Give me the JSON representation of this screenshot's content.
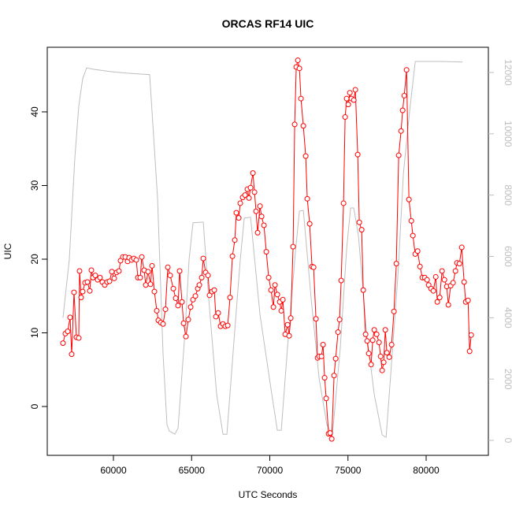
{
  "chart_data": {
    "type": "line",
    "title": "ORCAS RF14 UIC",
    "x_label": "UTC Seconds",
    "y_label": "UIC",
    "xlim": [
      55768,
      83980
    ],
    "ylim": [
      -6.63,
      48.77
    ],
    "y2lim": [
      -488,
      12822
    ],
    "xticks": [
      60000,
      65000,
      70000,
      75000,
      80000
    ],
    "yticks": [
      0,
      10,
      20,
      30,
      40
    ],
    "y2ticks": [
      0,
      2000,
      4000,
      6000,
      8000,
      10000,
      12000
    ],
    "series": [
      {
        "color": "#ff0000",
        "markers": true,
        "x": [
          56774,
          56926,
          57077,
          57228,
          57329,
          57480,
          57631,
          57782,
          57833,
          57934,
          58034,
          58186,
          58337,
          58488,
          58589,
          58690,
          58841,
          58992,
          59143,
          59294,
          59446,
          59597,
          59748,
          59899,
          60050,
          60202,
          60353,
          60454,
          60605,
          60756,
          60907,
          61008,
          61159,
          61310,
          61462,
          61562,
          61714,
          61814,
          61966,
          62066,
          62218,
          62369,
          62470,
          62621,
          62772,
          62873,
          63024,
          63175,
          63326,
          63478,
          63629,
          63830,
          63982,
          64133,
          64234,
          64385,
          64486,
          64637,
          64788,
          64939,
          65090,
          65242,
          65393,
          65494,
          65645,
          65746,
          65897,
          66048,
          66149,
          66300,
          66451,
          66552,
          66703,
          66854,
          67006,
          67157,
          67308,
          67459,
          67610,
          67762,
          67862,
          68014,
          68114,
          68266,
          68417,
          68568,
          68669,
          68770,
          68921,
          69022,
          69122,
          69223,
          69374,
          69475,
          69626,
          69778,
          69929,
          70080,
          70231,
          70332,
          70483,
          70634,
          70735,
          70836,
          70987,
          71138,
          71239,
          71340,
          71491,
          71592,
          71693,
          71794,
          71894,
          71995,
          72146,
          72298,
          72398,
          72550,
          72701,
          72802,
          72953,
          73054,
          73154,
          73306,
          73406,
          73507,
          73608,
          73759,
          73860,
          73961,
          74112,
          74213,
          74364,
          74465,
          74566,
          74717,
          74818,
          74918,
          75019,
          75120,
          75221,
          75372,
          75473,
          75624,
          75725,
          75876,
          75977,
          76128,
          76229,
          76330,
          76481,
          76582,
          76682,
          76834,
          76985,
          77086,
          77186,
          77287,
          77388,
          77489,
          77640,
          77791,
          77942,
          78094,
          78245,
          78396,
          78497,
          78598,
          78749,
          78900,
          79051,
          79152,
          79303,
          79454,
          79606,
          79757,
          79908,
          80059,
          80160,
          80311,
          80462,
          80614,
          80714,
          80866,
          81017,
          81168,
          81319,
          81420,
          81571,
          81722,
          81874,
          81974,
          82126,
          82277,
          82428,
          82529,
          82680,
          82781,
          82882
        ],
        "values": [
          8.6,
          9.9,
          10.2,
          12.1,
          7.1,
          15.5,
          9.4,
          9.3,
          18.4,
          14.8,
          15.6,
          16.8,
          16.9,
          15.7,
          18.5,
          17.5,
          17.8,
          17.2,
          17.5,
          16.9,
          16.5,
          16.9,
          17,
          18.3,
          17.4,
          18.2,
          18.4,
          19.8,
          20.3,
          20.3,
          19.7,
          20.2,
          19.9,
          20.1,
          19.9,
          17.5,
          17.5,
          20.3,
          18.5,
          16.5,
          18.3,
          16.6,
          19.1,
          15.6,
          13,
          11.7,
          11.4,
          11.2,
          13.2,
          18.9,
          17.8,
          16,
          14.7,
          13.7,
          18.4,
          14.2,
          11.3,
          9.5,
          11.8,
          13.5,
          14.5,
          15,
          16,
          16.5,
          17.5,
          20.1,
          18.2,
          17.8,
          15.1,
          15.6,
          15.8,
          12.2,
          12.7,
          10.9,
          11.2,
          10.9,
          11,
          14.8,
          20.4,
          22.6,
          26.3,
          25.6,
          27.6,
          28.4,
          28.7,
          29.5,
          28.3,
          29.7,
          31.7,
          29.1,
          26.5,
          23.6,
          27.2,
          25.8,
          24.6,
          21,
          17.5,
          15.8,
          13.5,
          16.5,
          15.2,
          14.2,
          13,
          14.5,
          9.8,
          11.1,
          9.6,
          12,
          21.7,
          38.3,
          46.1,
          47,
          45.9,
          41.8,
          38.1,
          34,
          28.2,
          24.8,
          19,
          18.9,
          11.9,
          6.6,
          6.8,
          6.8,
          8.4,
          3.9,
          1.1,
          -3.7,
          -3.6,
          -4.4,
          4.2,
          6.5,
          10.1,
          11.8,
          17.1,
          27.6,
          39.3,
          41.8,
          41,
          42.6,
          41.8,
          41.6,
          43,
          34.2,
          25,
          24,
          15.8,
          9.8,
          8.9,
          7.2,
          5.7,
          9,
          10.4,
          9.8,
          8.7,
          6.8,
          4.9,
          6,
          10.4,
          7.3,
          6.7,
          8.4,
          12.9,
          19.4,
          34.1,
          37.4,
          40.2,
          42.2,
          45.7,
          28.1,
          25.2,
          23.2,
          20.7,
          21.1,
          19,
          17.5,
          17.5,
          17.2,
          16.5,
          16,
          15.7,
          17.6,
          14.2,
          14.8,
          18.4,
          17.2,
          16.3,
          13.8,
          16.4,
          16.8,
          18.4,
          19.5,
          19.4,
          21.6,
          16.9,
          14.2,
          14.4,
          7.5,
          9.7
        ]
      },
      {
        "color": "#bebebe",
        "axis": "y2",
        "markers": false,
        "x": [
          56774,
          57178,
          57530,
          57782,
          58034,
          58286,
          58790,
          59798,
          60806,
          62318,
          62822,
          63175,
          63427,
          63578,
          63931,
          64133,
          64586,
          64838,
          65090,
          65746,
          66098,
          66602,
          67006,
          67258,
          67762,
          68114,
          68366,
          68770,
          69374,
          70130,
          70483,
          70735,
          71138,
          71642,
          71894,
          72146,
          72650,
          73154,
          73658,
          74011,
          74515,
          74918,
          75170,
          75372,
          75674,
          76178,
          76682,
          77186,
          77438,
          77791,
          78194,
          78547,
          78950,
          79303,
          79958,
          80966,
          82326
        ],
        "values": [
          4000,
          5900,
          9200,
          10900,
          11800,
          12150,
          12100,
          12030,
          11980,
          11930,
          7900,
          2800,
          500,
          300,
          200,
          400,
          3600,
          5900,
          7100,
          7120,
          4600,
          1500,
          200,
          200,
          3600,
          5900,
          7250,
          7280,
          4100,
          1500,
          330,
          330,
          3060,
          6150,
          7480,
          7500,
          4600,
          2030,
          490,
          200,
          3060,
          6270,
          7580,
          7580,
          6660,
          3570,
          1500,
          180,
          100,
          2540,
          5370,
          8710,
          10770,
          12360,
          12360,
          12360,
          12340
        ]
      }
    ]
  }
}
